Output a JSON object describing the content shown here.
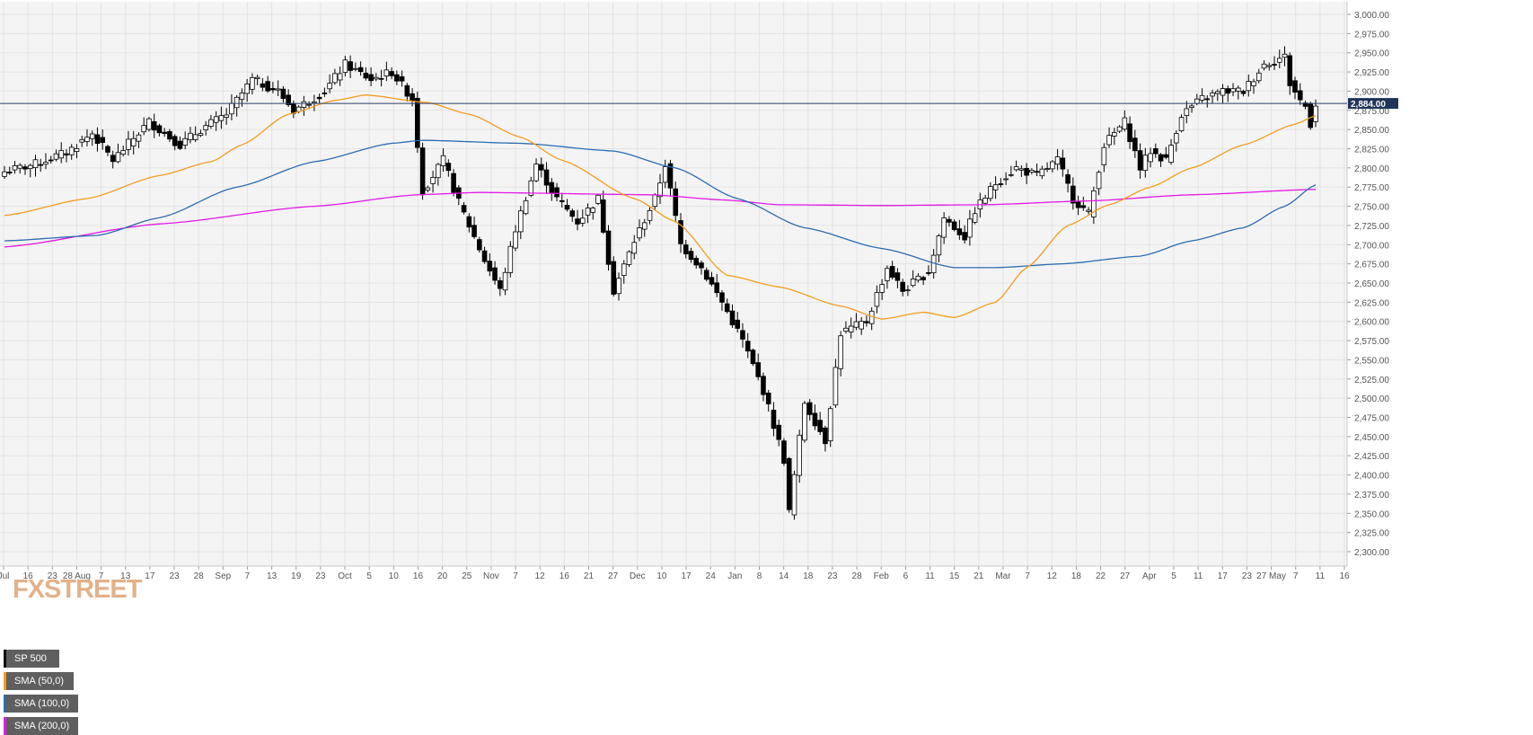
{
  "colors": {
    "background": "#f4f4f4",
    "grid": "#e3e3e3",
    "up_candle": "#ffffff",
    "down_candle": "#000000",
    "price_line": "#2a3f6e",
    "price_tag": "#203559",
    "sma50": "#f39c1f",
    "sma100": "#2b6cb0",
    "sma200": "#e21ae6",
    "logo": "#e3b189"
  },
  "legend": [
    {
      "label": "SP 500",
      "color": "#111111"
    },
    {
      "label": "SMA (50,0)",
      "color": "#f39c1f"
    },
    {
      "label": "SMA (100,0)",
      "color": "#2b6cb0"
    },
    {
      "label": "SMA (200,0)",
      "color": "#e21ae6"
    }
  ],
  "logo": {
    "text": "FXSTREET"
  },
  "price_tag": "2,884.00",
  "chart_data": {
    "type": "candlestick",
    "title": "SP 500",
    "ylim": [
      2285,
      3015
    ],
    "y_ticks": [
      "2,300.00",
      "2,325.00",
      "2,350.00",
      "2,375.00",
      "2,400.00",
      "2,425.00",
      "2,450.00",
      "2,475.00",
      "2,500.00",
      "2,525.00",
      "2,550.00",
      "2,575.00",
      "2,600.00",
      "2,625.00",
      "2,650.00",
      "2,675.00",
      "2,700.00",
      "2,725.00",
      "2,750.00",
      "2,775.00",
      "2,800.00",
      "2,825.00",
      "2,850.00",
      "2,875.00",
      "2,900.00",
      "2,925.00",
      "2,950.00",
      "2,975.00",
      "3,000.00"
    ],
    "x_ticks": [
      "Jul",
      "16",
      "23",
      "28 Aug",
      "7",
      "13",
      "17",
      "23",
      "28",
      "Sep",
      "7",
      "13",
      "19",
      "23",
      "Oct",
      "5",
      "10",
      "16",
      "20",
      "25",
      "Nov",
      "7",
      "12",
      "16",
      "21",
      "27",
      "Dec",
      "10",
      "17",
      "24",
      "Jan",
      "8",
      "14",
      "18",
      "23",
      "28",
      "Feb",
      "6",
      "11",
      "15",
      "21",
      "Mar",
      "7",
      "12",
      "18",
      "22",
      "27",
      "Apr",
      "5",
      "11",
      "17",
      "23",
      "27 May",
      "7",
      "11",
      "16"
    ],
    "last_price": 2884,
    "anchors": [
      [
        0,
        2795
      ],
      [
        6,
        2805
      ],
      [
        12,
        2820
      ],
      [
        17,
        2845
      ],
      [
        21,
        2810
      ],
      [
        28,
        2860
      ],
      [
        34,
        2830
      ],
      [
        38,
        2850
      ],
      [
        43,
        2870
      ],
      [
        48,
        2915
      ],
      [
        53,
        2900
      ],
      [
        56,
        2875
      ],
      [
        62,
        2900
      ],
      [
        66,
        2935
      ],
      [
        71,
        2915
      ],
      [
        75,
        2925
      ],
      [
        79,
        2890
      ],
      [
        81,
        2770
      ],
      [
        85,
        2810
      ],
      [
        88,
        2755
      ],
      [
        93,
        2680
      ],
      [
        96,
        2640
      ],
      [
        99,
        2720
      ],
      [
        103,
        2805
      ],
      [
        107,
        2760
      ],
      [
        111,
        2730
      ],
      [
        115,
        2760
      ],
      [
        118,
        2640
      ],
      [
        122,
        2705
      ],
      [
        126,
        2760
      ],
      [
        128,
        2805
      ],
      [
        131,
        2700
      ],
      [
        135,
        2670
      ],
      [
        139,
        2625
      ],
      [
        143,
        2575
      ],
      [
        147,
        2510
      ],
      [
        151,
        2420
      ],
      [
        152,
        2351
      ],
      [
        155,
        2495
      ],
      [
        159,
        2445
      ],
      [
        162,
        2585
      ],
      [
        167,
        2600
      ],
      [
        171,
        2670
      ],
      [
        174,
        2640
      ],
      [
        179,
        2665
      ],
      [
        182,
        2735
      ],
      [
        186,
        2710
      ],
      [
        188,
        2745
      ],
      [
        192,
        2780
      ],
      [
        196,
        2800
      ],
      [
        200,
        2790
      ],
      [
        204,
        2810
      ],
      [
        207,
        2760
      ],
      [
        210,
        2740
      ],
      [
        213,
        2830
      ],
      [
        217,
        2860
      ],
      [
        220,
        2800
      ],
      [
        222,
        2822
      ],
      [
        225,
        2810
      ],
      [
        228,
        2870
      ],
      [
        232,
        2890
      ],
      [
        236,
        2900
      ],
      [
        240,
        2900
      ],
      [
        244,
        2935
      ],
      [
        248,
        2945
      ],
      [
        249,
        2910
      ],
      [
        251,
        2888
      ],
      [
        252,
        2880
      ],
      [
        253,
        2858
      ],
      [
        254,
        2884
      ]
    ],
    "sma50": [
      [
        0,
        2738
      ],
      [
        16,
        2760
      ],
      [
        30,
        2790
      ],
      [
        40,
        2808
      ],
      [
        46,
        2830
      ],
      [
        55,
        2870
      ],
      [
        64,
        2888
      ],
      [
        70,
        2895
      ],
      [
        82,
        2885
      ],
      [
        90,
        2870
      ],
      [
        100,
        2840
      ],
      [
        108,
        2810
      ],
      [
        122,
        2760
      ],
      [
        130,
        2730
      ],
      [
        140,
        2660
      ],
      [
        150,
        2645
      ],
      [
        162,
        2620
      ],
      [
        170,
        2603
      ],
      [
        178,
        2612
      ],
      [
        184,
        2605
      ],
      [
        192,
        2625
      ],
      [
        198,
        2670
      ],
      [
        206,
        2725
      ],
      [
        214,
        2752
      ],
      [
        222,
        2775
      ],
      [
        230,
        2800
      ],
      [
        240,
        2830
      ],
      [
        250,
        2857
      ],
      [
        254,
        2868
      ]
    ],
    "sma100": [
      [
        0,
        2705
      ],
      [
        18,
        2712
      ],
      [
        30,
        2735
      ],
      [
        45,
        2775
      ],
      [
        60,
        2808
      ],
      [
        75,
        2832
      ],
      [
        81,
        2836
      ],
      [
        100,
        2832
      ],
      [
        118,
        2822
      ],
      [
        130,
        2800
      ],
      [
        142,
        2760
      ],
      [
        155,
        2722
      ],
      [
        170,
        2695
      ],
      [
        184,
        2670
      ],
      [
        192,
        2670
      ],
      [
        205,
        2675
      ],
      [
        220,
        2685
      ],
      [
        230,
        2705
      ],
      [
        240,
        2722
      ],
      [
        248,
        2750
      ],
      [
        254,
        2778
      ]
    ],
    "sma200": [
      [
        0,
        2697
      ],
      [
        30,
        2727
      ],
      [
        60,
        2750
      ],
      [
        80,
        2765
      ],
      [
        92,
        2768
      ],
      [
        125,
        2765
      ],
      [
        140,
        2758
      ],
      [
        150,
        2752
      ],
      [
        170,
        2751
      ],
      [
        190,
        2752
      ],
      [
        210,
        2757
      ],
      [
        230,
        2765
      ],
      [
        254,
        2772
      ]
    ]
  }
}
